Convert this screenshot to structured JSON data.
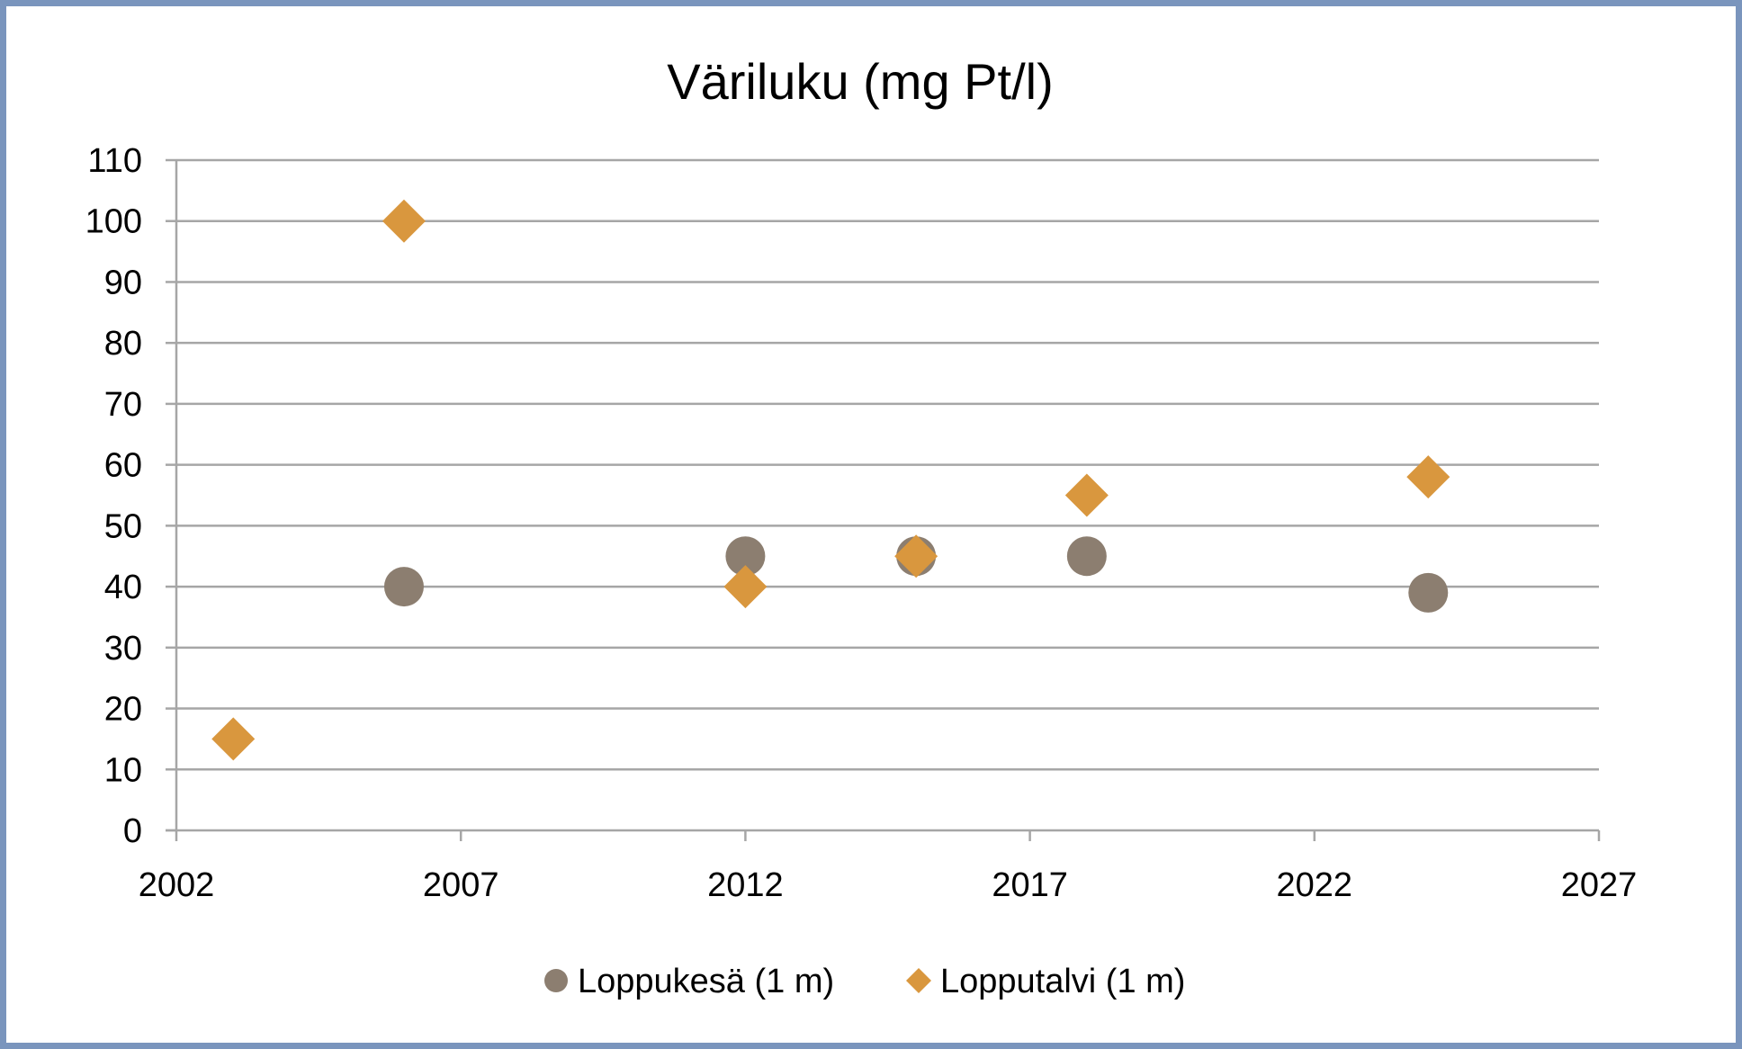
{
  "chart_data": {
    "type": "scatter",
    "title": "Väriluku  (mg Pt/l)",
    "xlabel": "",
    "ylabel": "",
    "xlim": [
      2002,
      2027
    ],
    "ylim": [
      0,
      110
    ],
    "x_ticks": [
      "2002",
      "2007",
      "2012",
      "2017",
      "2022",
      "2027"
    ],
    "y_ticks": [
      "0",
      "10",
      "20",
      "30",
      "40",
      "50",
      "60",
      "70",
      "80",
      "90",
      "100",
      "110"
    ],
    "grid": "horizontal",
    "legend_position": "bottom",
    "series": [
      {
        "name": "Loppukesä (1 m)",
        "marker": "circle",
        "color": "#8c7e70",
        "points": [
          {
            "x": 2006,
            "y": 40
          },
          {
            "x": 2012,
            "y": 45
          },
          {
            "x": 2015,
            "y": 45
          },
          {
            "x": 2018,
            "y": 45
          },
          {
            "x": 2024,
            "y": 39
          }
        ]
      },
      {
        "name": "Lopputalvi (1 m)",
        "marker": "diamond",
        "color": "#d9973e",
        "points": [
          {
            "x": 2003,
            "y": 15
          },
          {
            "x": 2006,
            "y": 100
          },
          {
            "x": 2012,
            "y": 40
          },
          {
            "x": 2015,
            "y": 45
          },
          {
            "x": 2018,
            "y": 55
          },
          {
            "x": 2024,
            "y": 58
          }
        ]
      }
    ]
  }
}
